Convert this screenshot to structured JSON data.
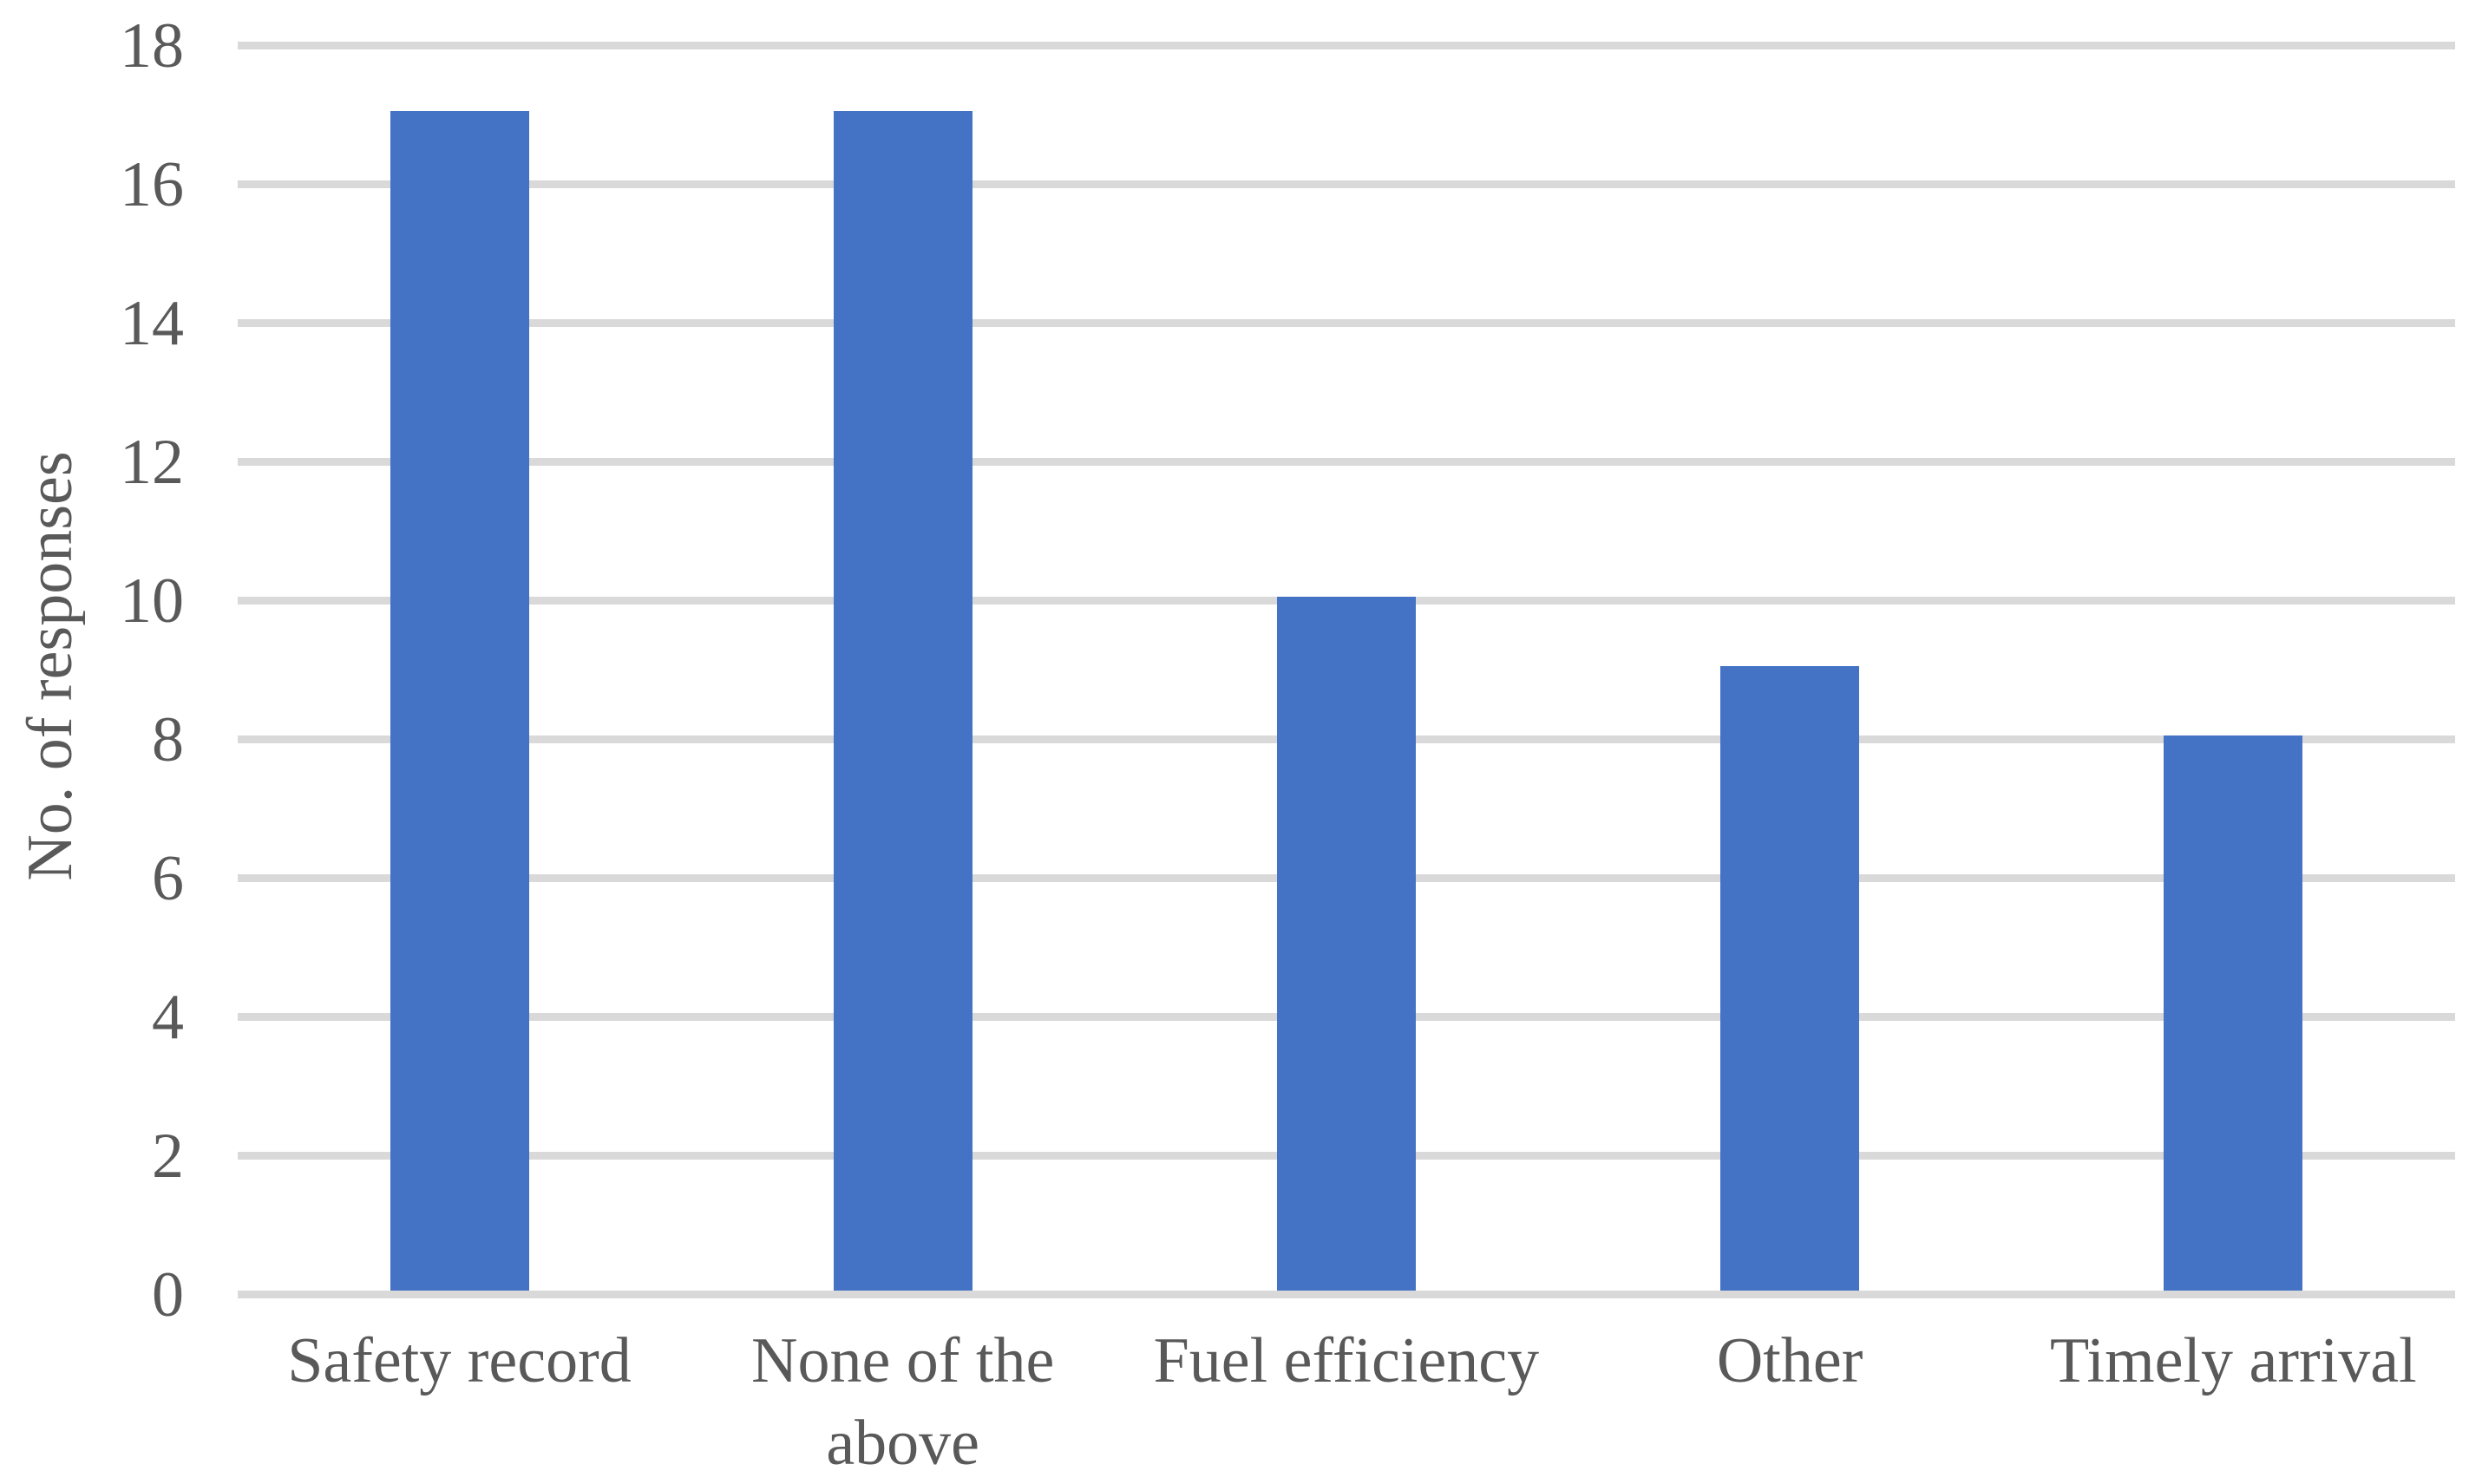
{
  "chart_data": {
    "type": "bar",
    "title": "",
    "xlabel": "",
    "ylabel": "No. of responses",
    "categories": [
      "Safety record",
      "None of the above",
      "Fuel efficiency",
      "Other",
      "Timely arrival"
    ],
    "values": [
      17,
      17,
      10,
      9,
      8
    ],
    "series": [
      {
        "name": "No. of responses",
        "values": [
          17,
          17,
          10,
          9,
          8
        ]
      }
    ],
    "ylim": [
      0,
      18
    ],
    "y_tick_step": 2,
    "y_tick_labels": [
      "0",
      "2",
      "4",
      "6",
      "8",
      "10",
      "12",
      "14",
      "16",
      "18"
    ],
    "grid": true,
    "legend_position": "none",
    "colors": {
      "bar": "#4472C4",
      "gridline": "#D9D9D9",
      "text": "#595959",
      "background": "#FFFFFF"
    }
  }
}
